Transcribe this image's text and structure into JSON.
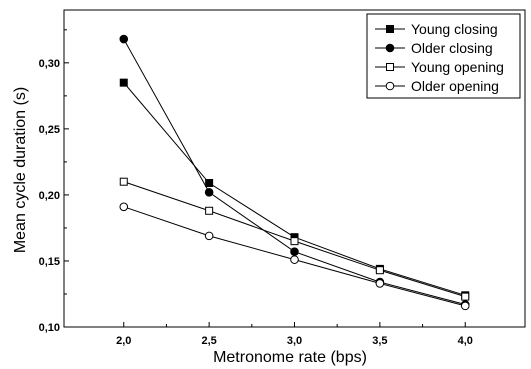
{
  "chart_data": {
    "type": "line",
    "xlabel": "Metronome rate (bps)",
    "ylabel": "Mean cycle duration (s)",
    "xlim": [
      1.65,
      4.35
    ],
    "ylim": [
      0.1,
      0.34
    ],
    "x_ticks": [
      {
        "value": 2.0,
        "label": "2,0"
      },
      {
        "value": 2.5,
        "label": "2,5"
      },
      {
        "value": 3.0,
        "label": "3,0"
      },
      {
        "value": 3.5,
        "label": "3,5"
      },
      {
        "value": 4.0,
        "label": "4,0"
      }
    ],
    "y_ticks": [
      {
        "value": 0.1,
        "label": "0,10"
      },
      {
        "value": 0.15,
        "label": "0,15"
      },
      {
        "value": 0.2,
        "label": "0,20"
      },
      {
        "value": 0.25,
        "label": "0,25"
      },
      {
        "value": 0.3,
        "label": "0,30"
      }
    ],
    "grid": false,
    "legend_position": "top-right",
    "x": [
      2.0,
      2.5,
      3.0,
      3.5,
      4.0
    ],
    "series": [
      {
        "name": "Young closing",
        "marker": "square",
        "filled": true,
        "values": [
          0.285,
          0.209,
          0.168,
          0.144,
          0.124
        ]
      },
      {
        "name": "Older closing",
        "marker": "circle",
        "filled": true,
        "values": [
          0.318,
          0.202,
          0.157,
          0.134,
          0.117
        ]
      },
      {
        "name": "Young opening",
        "marker": "square",
        "filled": false,
        "values": [
          0.21,
          0.188,
          0.165,
          0.143,
          0.123
        ]
      },
      {
        "name": "Older opening",
        "marker": "circle",
        "filled": false,
        "values": [
          0.191,
          0.169,
          0.151,
          0.133,
          0.116
        ]
      }
    ]
  }
}
